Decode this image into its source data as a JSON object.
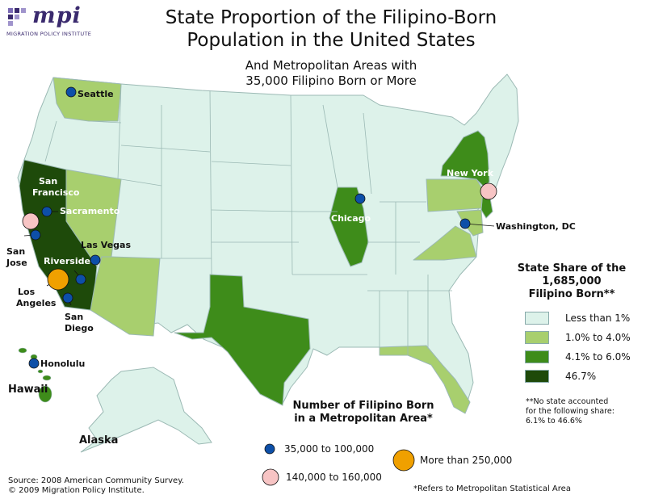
{
  "logo": {
    "name": "mpi",
    "subtitle": "MIGRATION POLICY INSTITUTE"
  },
  "title_line1": "State Proportion of the Filipino-Born",
  "title_line2": "Population in the United States",
  "subtitle_line1": "And Metropolitan Areas with",
  "subtitle_line2": "35,000 Filipino Born or More",
  "colors": {
    "less_than_1": "#ddf2ea",
    "1_to_4": "#a8cf6e",
    "4_to_6": "#3e8c1a",
    "highest": "#1e4a0a",
    "state_border": "#9bb9b4",
    "metro_small": "#0d4fa8",
    "metro_mid": "#f7c4c4",
    "metro_large": "#f0a000"
  },
  "state_legend": {
    "title_line1": "State Share of the",
    "title_line2": "1,685,000",
    "title_line3": "Filipino Born**",
    "items": [
      {
        "label": "Less than 1%",
        "color_key": "less_than_1"
      },
      {
        "label": "1.0% to 4.0%",
        "color_key": "1_to_4"
      },
      {
        "label": "4.1% to 6.0%",
        "color_key": "4_to_6"
      },
      {
        "label": "46.7%",
        "color_key": "highest"
      }
    ],
    "note_line1": "**No state accounted",
    "note_line2": "for the following share:",
    "note_line3": "6.1% to 46.6%"
  },
  "metro_legend": {
    "title_line1": "Number of Filipino Born",
    "title_line2": "in a Metropolitan Area*",
    "small": "35,000 to 100,000",
    "mid": "140,000 to 160,000",
    "large": "More than 250,000"
  },
  "cities": {
    "seattle": "Seattle",
    "sf1": "San",
    "sf2": "Francisco",
    "sacramento": "Sacramento",
    "sj1": "San",
    "sj2": "Jose",
    "las_vegas": "Las Vegas",
    "riverside": "Riverside",
    "la1": "Los",
    "la2": "Angeles",
    "sd1": "San",
    "sd2": "Diego",
    "honolulu": "Honolulu",
    "chicago": "Chicago",
    "new_york": "New York",
    "washington": "Washington, DC"
  },
  "regions": {
    "hawaii": "Hawaii",
    "alaska": "Alaska"
  },
  "source_line1": "Source: 2008 American Community Survey.",
  "source_line2": "© 2009 Migration Policy Institute.",
  "footnote": "*Refers to Metropolitan Statistical Area"
}
